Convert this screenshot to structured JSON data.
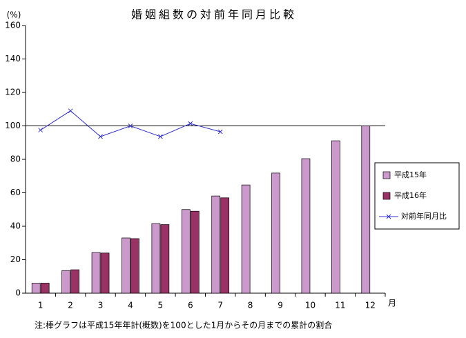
{
  "chart_data": {
    "type": "bar",
    "title": "婚姻組数の対前年同月比較",
    "y_label": "(%)",
    "x_label": "月",
    "note": "注:棒グラフは平成15年年計(概数)を100とした1月からその月までの累計の割合",
    "categories": [
      "1",
      "2",
      "3",
      "4",
      "5",
      "6",
      "7",
      "8",
      "9",
      "10",
      "11",
      "12"
    ],
    "series": [
      {
        "name": "平成15年",
        "color": "#cc99cc",
        "type": "bar",
        "values": [
          6,
          13.5,
          24.3,
          33,
          41.6,
          50,
          58.1,
          64.7,
          71.8,
          80.4,
          91.1,
          100
        ]
      },
      {
        "name": "平成16年",
        "color": "#993366",
        "type": "bar",
        "values": [
          6,
          14,
          24,
          32.6,
          41,
          49,
          57,
          null,
          null,
          null,
          null,
          null
        ]
      },
      {
        "name": "対前年同月比",
        "color": "#3333cc",
        "type": "line",
        "values": [
          97.5,
          109,
          93.6,
          100,
          93.6,
          101.4,
          96.5,
          null,
          null,
          null,
          null,
          null
        ]
      }
    ],
    "ylim": [
      0,
      160
    ],
    "yticks": [
      0,
      20,
      40,
      60,
      80,
      100,
      120,
      140,
      160
    ],
    "reference_line": 100,
    "legend": "right"
  }
}
